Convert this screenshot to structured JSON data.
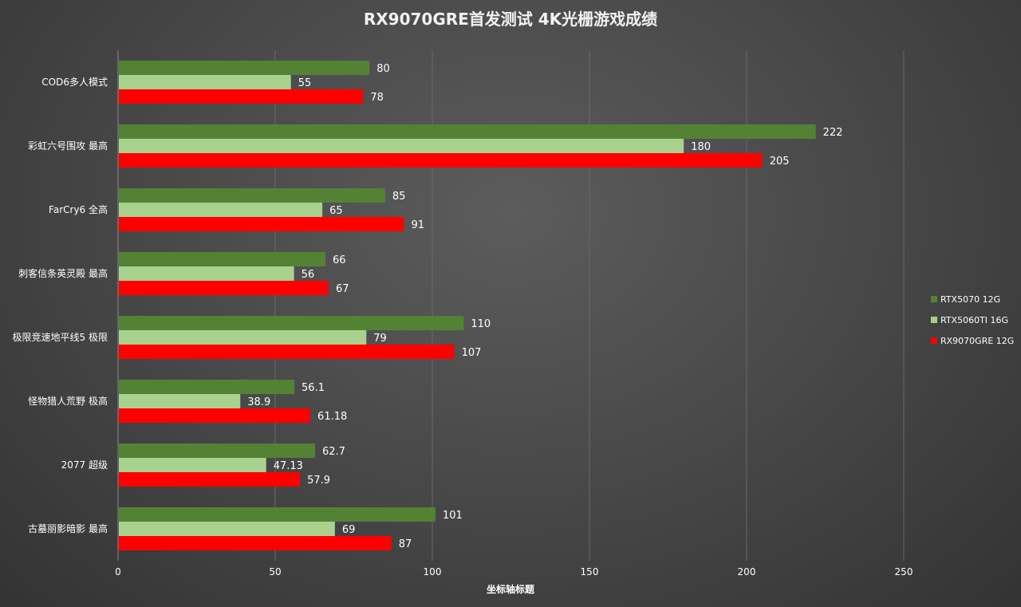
{
  "chart_data": {
    "type": "bar",
    "orientation": "horizontal",
    "title": "RX9070GRE首发测试 4K光栅游戏成绩",
    "xlabel": "坐标轴标题",
    "ylabel": "",
    "xlim": [
      0,
      250
    ],
    "xticks": [
      "0",
      "50",
      "100",
      "150",
      "200",
      "250"
    ],
    "grid": true,
    "legend_position": "right",
    "categories": [
      "COD6多人模式",
      "彩虹六号围攻 最高",
      "FarCry6 全高",
      "刺客信条英灵殿 最高",
      "极限竞速地平线5 极限",
      "怪物猎人荒野 极高",
      "2077 超级",
      "古墓丽影暗影 最高"
    ],
    "series": [
      {
        "name": "RTX5070 12G",
        "color": "#548235",
        "values": [
          80,
          222,
          85,
          66,
          110,
          56.1,
          62.7,
          101
        ],
        "labels": [
          "80",
          "222",
          "85",
          "66",
          "110",
          "56.1",
          "62.7",
          "101"
        ]
      },
      {
        "name": "RTX5060TI 16G",
        "color": "#a9d18e",
        "values": [
          55,
          180,
          65,
          56,
          79,
          38.9,
          47.13,
          69
        ],
        "labels": [
          "55",
          "180",
          "65",
          "56",
          "79",
          "38.9",
          "47.13",
          "69"
        ]
      },
      {
        "name": "RX9070GRE 12G",
        "color": "#ff0000",
        "values": [
          78,
          205,
          91,
          67,
          107,
          61.18,
          57.9,
          87
        ],
        "labels": [
          "78",
          "205",
          "91",
          "67",
          "107",
          "61.18",
          "57.9",
          "87"
        ]
      }
    ]
  }
}
